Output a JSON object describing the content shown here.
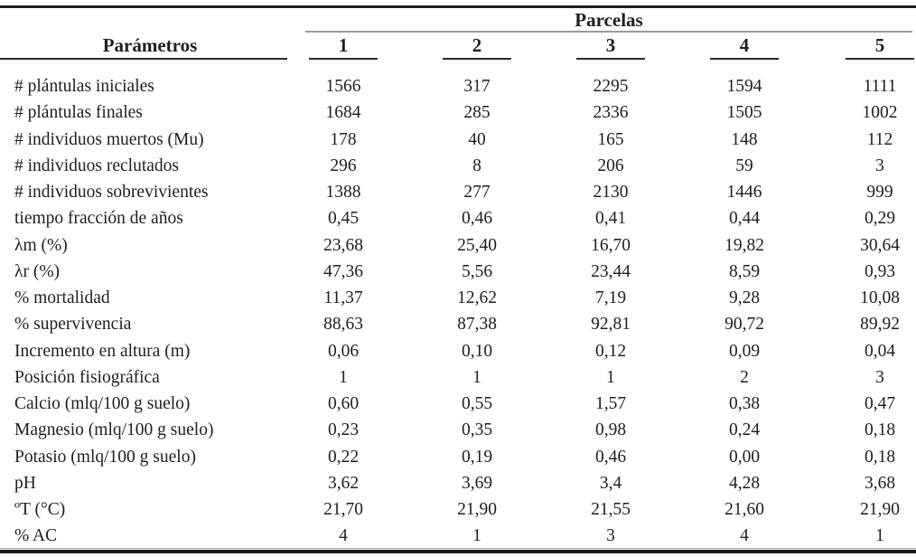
{
  "table": {
    "corner_header": "Parámetros",
    "group_header": "Parcelas",
    "columns": [
      "1",
      "2",
      "3",
      "4",
      "5"
    ],
    "rows": [
      {
        "label": "# plántulas iniciales",
        "values": [
          "1566",
          "317",
          "2295",
          "1594",
          "1111"
        ]
      },
      {
        "label": "# plántulas finales",
        "values": [
          "1684",
          "285",
          "2336",
          "1505",
          "1002"
        ]
      },
      {
        "label": "# individuos muertos (Mu)",
        "values": [
          "178",
          "40",
          "165",
          "148",
          "112"
        ]
      },
      {
        "label": "# individuos reclutados",
        "values": [
          "296",
          "8",
          "206",
          "59",
          "3"
        ]
      },
      {
        "label": "# individuos sobrevivientes",
        "values": [
          "1388",
          "277",
          "2130",
          "1446",
          "999"
        ]
      },
      {
        "label": "tiempo fracción de años",
        "values": [
          "0,45",
          "0,46",
          "0,41",
          "0,44",
          "0,29"
        ]
      },
      {
        "label": "λm (%)",
        "values": [
          "23,68",
          "25,40",
          "16,70",
          "19,82",
          "30,64"
        ]
      },
      {
        "label": "λr (%)",
        "values": [
          "47,36",
          "5,56",
          "23,44",
          "8,59",
          "0,93"
        ]
      },
      {
        "label": "% mortalidad",
        "values": [
          "11,37",
          "12,62",
          "7,19",
          "9,28",
          "10,08"
        ]
      },
      {
        "label": "% supervivencia",
        "values": [
          "88,63",
          "87,38",
          "92,81",
          "90,72",
          "89,92"
        ]
      },
      {
        "label": "Incremento en altura (m)",
        "values": [
          "0,06",
          "0,10",
          "0,12",
          "0,09",
          "0,04"
        ]
      },
      {
        "label": "Posición fisiográfica",
        "values": [
          "1",
          "1",
          "1",
          "2",
          "3"
        ]
      },
      {
        "label": "Calcio (mlq/100 g suelo)",
        "values": [
          "0,60",
          "0,55",
          "1,57",
          "0,38",
          "0,47"
        ]
      },
      {
        "label": "Magnesio (mlq/100 g suelo)",
        "values": [
          "0,23",
          "0,35",
          "0,98",
          "0,24",
          "0,18"
        ]
      },
      {
        "label": "Potasio (mlq/100 g suelo)",
        "values": [
          "0,22",
          "0,19",
          "0,46",
          "0,00",
          "0,18"
        ]
      },
      {
        "label": "pH",
        "values": [
          "3,62",
          "3,69",
          "3,4",
          "4,28",
          "3,68"
        ]
      },
      {
        "label": "ºT (°C)",
        "values": [
          "21,70",
          "21,90",
          "21,55",
          "21,60",
          "21,90"
        ]
      },
      {
        "label": "% AC",
        "values": [
          "4",
          "1",
          "3",
          "4",
          "1"
        ]
      }
    ]
  },
  "colors": {
    "background": "#ffffff",
    "text": "#1f1f1f",
    "rule_dark": "#1f1f1f",
    "rule_gray": "#9a9a9a"
  }
}
